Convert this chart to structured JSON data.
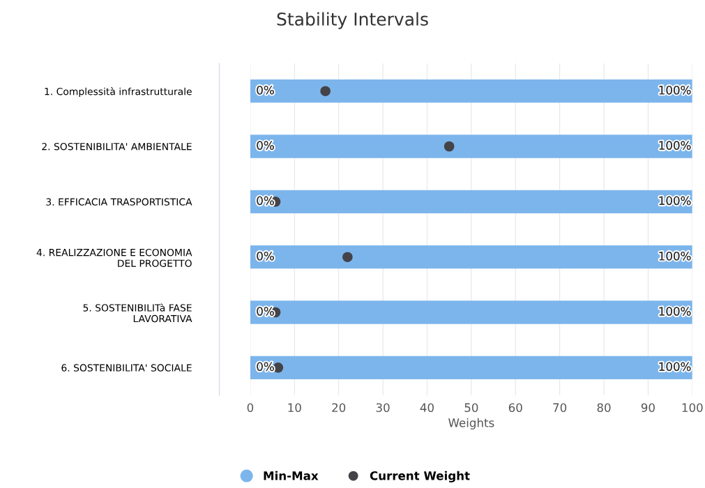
{
  "chart_data": {
    "type": "bar",
    "orientation": "horizontal",
    "title": "Stability Intervals",
    "xlabel": "Weights",
    "categories": [
      "1. Complessità infrastrutturale",
      "2. SOSTENIBILITA' AMBIENTALE",
      "3. EFFICACIA TRASPORTISTICA",
      "4. REALIZZAZIONE E ECONOMIA\nDEL PROGETTO",
      "5. SOSTENIBILITà FASE\nLAVORATIVA",
      "6. SOSTENIBILITA' SOCIALE"
    ],
    "series": [
      {
        "name": "Min-Max",
        "color": "#7cb5ec",
        "values": [
          100,
          100,
          100,
          100,
          100,
          100
        ]
      },
      {
        "name": "Current Weight",
        "type": "scatter",
        "color": "#434348",
        "values": [
          17,
          45,
          5.7,
          22,
          5.7,
          6.3
        ]
      }
    ],
    "annotations": [
      "0%",
      "100%",
      "0%",
      "100%",
      "0%",
      "100%",
      "0%",
      "100%",
      "0%",
      "100%",
      "0%",
      "100%"
    ],
    "xlim": [
      0,
      100
    ],
    "xticks": [
      0,
      10,
      20,
      30,
      40,
      50,
      60,
      70,
      80,
      90,
      100
    ],
    "grid": "x",
    "legend": "bottom",
    "marker": "circle"
  }
}
